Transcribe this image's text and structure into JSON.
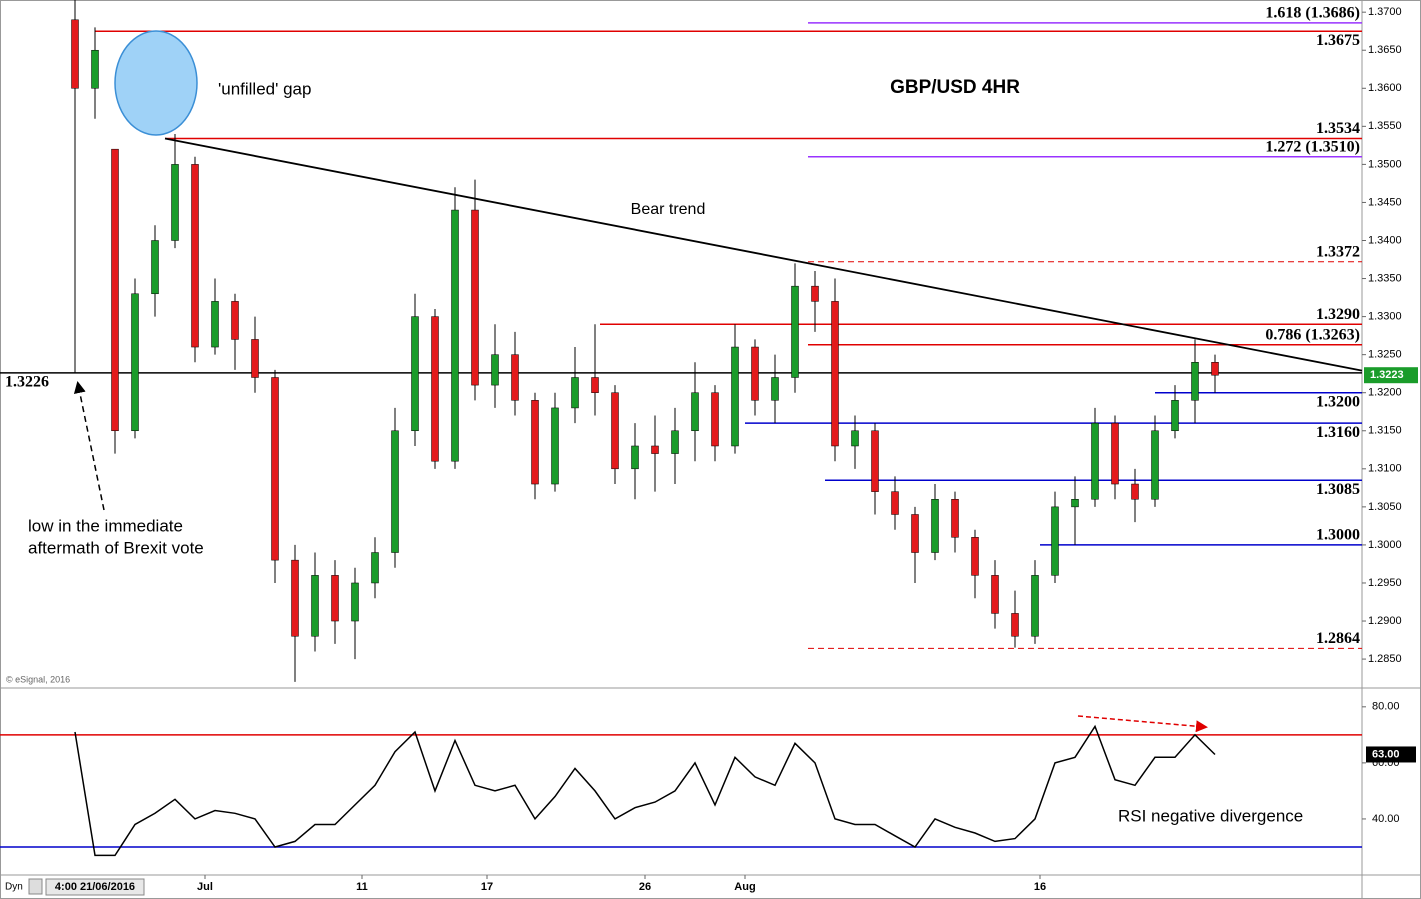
{
  "footer": {
    "copyright": "© eSignal, 2016",
    "indicator_label": "Dyn",
    "start_date": "4:00 21/06/2016"
  },
  "chart_data": [
    {
      "type": "candlestick",
      "title": "GBP/USD 4HR",
      "up_color": "#1a9c2a",
      "down_color": "#e31a1c",
      "candles": [
        [
          1.369,
          1.3716,
          1.3226,
          1.36
        ],
        [
          1.36,
          1.368,
          1.356,
          1.365
        ],
        [
          1.352,
          1.352,
          1.312,
          1.315
        ],
        [
          1.315,
          1.335,
          1.314,
          1.333
        ],
        [
          1.333,
          1.342,
          1.33,
          1.34
        ],
        [
          1.34,
          1.354,
          1.339,
          1.35
        ],
        [
          1.35,
          1.351,
          1.324,
          1.326
        ],
        [
          1.326,
          1.335,
          1.325,
          1.332
        ],
        [
          1.332,
          1.333,
          1.323,
          1.327
        ],
        [
          1.327,
          1.33,
          1.32,
          1.322
        ],
        [
          1.322,
          1.323,
          1.295,
          1.298
        ],
        [
          1.298,
          1.3,
          1.282,
          1.288
        ],
        [
          1.288,
          1.299,
          1.286,
          1.296
        ],
        [
          1.296,
          1.298,
          1.287,
          1.29
        ],
        [
          1.29,
          1.297,
          1.285,
          1.295
        ],
        [
          1.295,
          1.301,
          1.293,
          1.299
        ],
        [
          1.299,
          1.318,
          1.297,
          1.315
        ],
        [
          1.315,
          1.333,
          1.313,
          1.33
        ],
        [
          1.33,
          1.331,
          1.31,
          1.311
        ],
        [
          1.311,
          1.347,
          1.31,
          1.344
        ],
        [
          1.344,
          1.348,
          1.319,
          1.321
        ],
        [
          1.321,
          1.329,
          1.318,
          1.325
        ],
        [
          1.325,
          1.328,
          1.317,
          1.319
        ],
        [
          1.319,
          1.32,
          1.306,
          1.308
        ],
        [
          1.308,
          1.32,
          1.307,
          1.318
        ],
        [
          1.318,
          1.326,
          1.316,
          1.322
        ],
        [
          1.322,
          1.329,
          1.317,
          1.32
        ],
        [
          1.32,
          1.321,
          1.308,
          1.31
        ],
        [
          1.31,
          1.316,
          1.306,
          1.313
        ],
        [
          1.313,
          1.317,
          1.307,
          1.312
        ],
        [
          1.312,
          1.318,
          1.308,
          1.315
        ],
        [
          1.315,
          1.324,
          1.311,
          1.32
        ],
        [
          1.32,
          1.321,
          1.311,
          1.313
        ],
        [
          1.313,
          1.329,
          1.312,
          1.326
        ],
        [
          1.326,
          1.327,
          1.317,
          1.319
        ],
        [
          1.319,
          1.325,
          1.316,
          1.322
        ],
        [
          1.322,
          1.337,
          1.32,
          1.334
        ],
        [
          1.334,
          1.336,
          1.328,
          1.332
        ],
        [
          1.332,
          1.335,
          1.311,
          1.313
        ],
        [
          1.313,
          1.317,
          1.31,
          1.315
        ],
        [
          1.315,
          1.316,
          1.304,
          1.307
        ],
        [
          1.307,
          1.309,
          1.302,
          1.304
        ],
        [
          1.304,
          1.305,
          1.295,
          1.299
        ],
        [
          1.299,
          1.308,
          1.298,
          1.306
        ],
        [
          1.306,
          1.307,
          1.299,
          1.301
        ],
        [
          1.301,
          1.302,
          1.293,
          1.296
        ],
        [
          1.296,
          1.298,
          1.289,
          1.291
        ],
        [
          1.291,
          1.294,
          1.2865,
          1.288
        ],
        [
          1.288,
          1.298,
          1.287,
          1.296
        ],
        [
          1.296,
          1.307,
          1.295,
          1.305
        ],
        [
          1.305,
          1.309,
          1.3,
          1.306
        ],
        [
          1.306,
          1.318,
          1.305,
          1.316
        ],
        [
          1.316,
          1.317,
          1.306,
          1.308
        ],
        [
          1.308,
          1.31,
          1.303,
          1.306
        ],
        [
          1.306,
          1.317,
          1.305,
          1.315
        ],
        [
          1.315,
          1.321,
          1.314,
          1.319
        ],
        [
          1.319,
          1.327,
          1.316,
          1.324
        ],
        [
          1.324,
          1.325,
          1.32,
          1.3223
        ]
      ],
      "xlim": [
        -3.75,
        64.35
      ],
      "xticks": [
        {
          "value": 6.5,
          "label": "Jul"
        },
        {
          "value": 14.35,
          "label": "11"
        },
        {
          "value": 20.6,
          "label": "17"
        },
        {
          "value": 28.5,
          "label": "26"
        },
        {
          "value": 33.5,
          "label": "Aug"
        },
        {
          "value": 48.25,
          "label": "16"
        }
      ],
      "ylim": [
        1.2812,
        1.3716
      ],
      "yticks": [
        {
          "value": 1.285,
          "label": "1.2850"
        },
        {
          "value": 1.29,
          "label": "1.2900"
        },
        {
          "value": 1.295,
          "label": "1.2950"
        },
        {
          "value": 1.3,
          "label": "1.3000"
        },
        {
          "value": 1.305,
          "label": "1.3050"
        },
        {
          "value": 1.31,
          "label": "1.3100"
        },
        {
          "value": 1.315,
          "label": "1.3150"
        },
        {
          "value": 1.32,
          "label": "1.3200"
        },
        {
          "value": 1.325,
          "label": "1.3250"
        },
        {
          "value": 1.33,
          "label": "1.3300"
        },
        {
          "value": 1.335,
          "label": "1.3350"
        },
        {
          "value": 1.34,
          "label": "1.3400"
        },
        {
          "value": 1.345,
          "label": "1.3450"
        },
        {
          "value": 1.35,
          "label": "1.3500"
        },
        {
          "value": 1.355,
          "label": "1.3550"
        },
        {
          "value": 1.36,
          "label": "1.3600"
        },
        {
          "value": 1.365,
          "label": "1.3650"
        },
        {
          "value": 1.37,
          "label": "1.3700"
        }
      ],
      "last_price": {
        "value": 1.3223,
        "label": "1.3223",
        "color": "#1a9c2a"
      },
      "levels": [
        {
          "value": 1.3686,
          "label": "1.618 (1.3686)",
          "color": "#9933ff",
          "style": "solid"
        },
        {
          "value": 1.3675,
          "label": "1.3675",
          "color": "#e00000",
          "style": "solid"
        },
        {
          "value": 1.3534,
          "label": "1.3534",
          "color": "#e00000",
          "style": "solid"
        },
        {
          "value": 1.351,
          "label": "1.272 (1.3510)",
          "color": "#9933ff",
          "style": "solid"
        },
        {
          "value": 1.3372,
          "label": "1.3372",
          "color": "#e00000",
          "style": "dashed"
        },
        {
          "value": 1.329,
          "label": "1.3290",
          "color": "#e00000",
          "style": "solid"
        },
        {
          "value": 1.3263,
          "label": "0.786 (1.3263)",
          "color": "#e00000",
          "style": "solid"
        },
        {
          "value": 1.3226,
          "label": "1.3226",
          "color": "#000000",
          "style": "solid"
        },
        {
          "value": 1.32,
          "label": "1.3200",
          "color": "#0000cc",
          "style": "solid"
        },
        {
          "value": 1.316,
          "label": "1.3160",
          "color": "#0000cc",
          "style": "solid"
        },
        {
          "value": 1.3085,
          "label": "1.3085",
          "color": "#0000cc",
          "style": "solid"
        },
        {
          "value": 1.3,
          "label": "1.3000",
          "color": "#0000cc",
          "style": "solid"
        },
        {
          "value": 1.2864,
          "label": "1.2864",
          "color": "#e00000",
          "style": "dashed"
        }
      ],
      "trend_line": {
        "label": "Bear trend",
        "x": [
          4.5,
          64.35
        ],
        "y": [
          1.3534,
          1.3229
        ]
      },
      "annotations": {
        "gap": "'unfilled' gap",
        "brexit": [
          "low in the immediate",
          "aftermath of Brexit vote"
        ]
      }
    },
    {
      "type": "line",
      "color": "#000000",
      "values": [
        71,
        27,
        27,
        38,
        42,
        47,
        40,
        43,
        42,
        40,
        30,
        32,
        38,
        38,
        45,
        52,
        64,
        71,
        50,
        68,
        52,
        50,
        52,
        40,
        48,
        58,
        50,
        40,
        44,
        46,
        50,
        60,
        45,
        62,
        55,
        52,
        67,
        60,
        40,
        38,
        38,
        34,
        30,
        40,
        37,
        35,
        32,
        33,
        40,
        60,
        62,
        73,
        54,
        52,
        62,
        62,
        70,
        63
      ],
      "ylim": [
        20,
        86
      ],
      "yticks": [
        {
          "value": 40,
          "label": "40.00"
        },
        {
          "value": 60,
          "label": "60.00"
        },
        {
          "value": 80,
          "label": "80.00"
        }
      ],
      "levels": [
        {
          "value": 70,
          "color": "#e00000"
        },
        {
          "value": 30,
          "color": "#0000cc"
        }
      ],
      "last_value": {
        "value": 63,
        "label": "63.00"
      },
      "annotation": "RSI negative divergence"
    }
  ]
}
